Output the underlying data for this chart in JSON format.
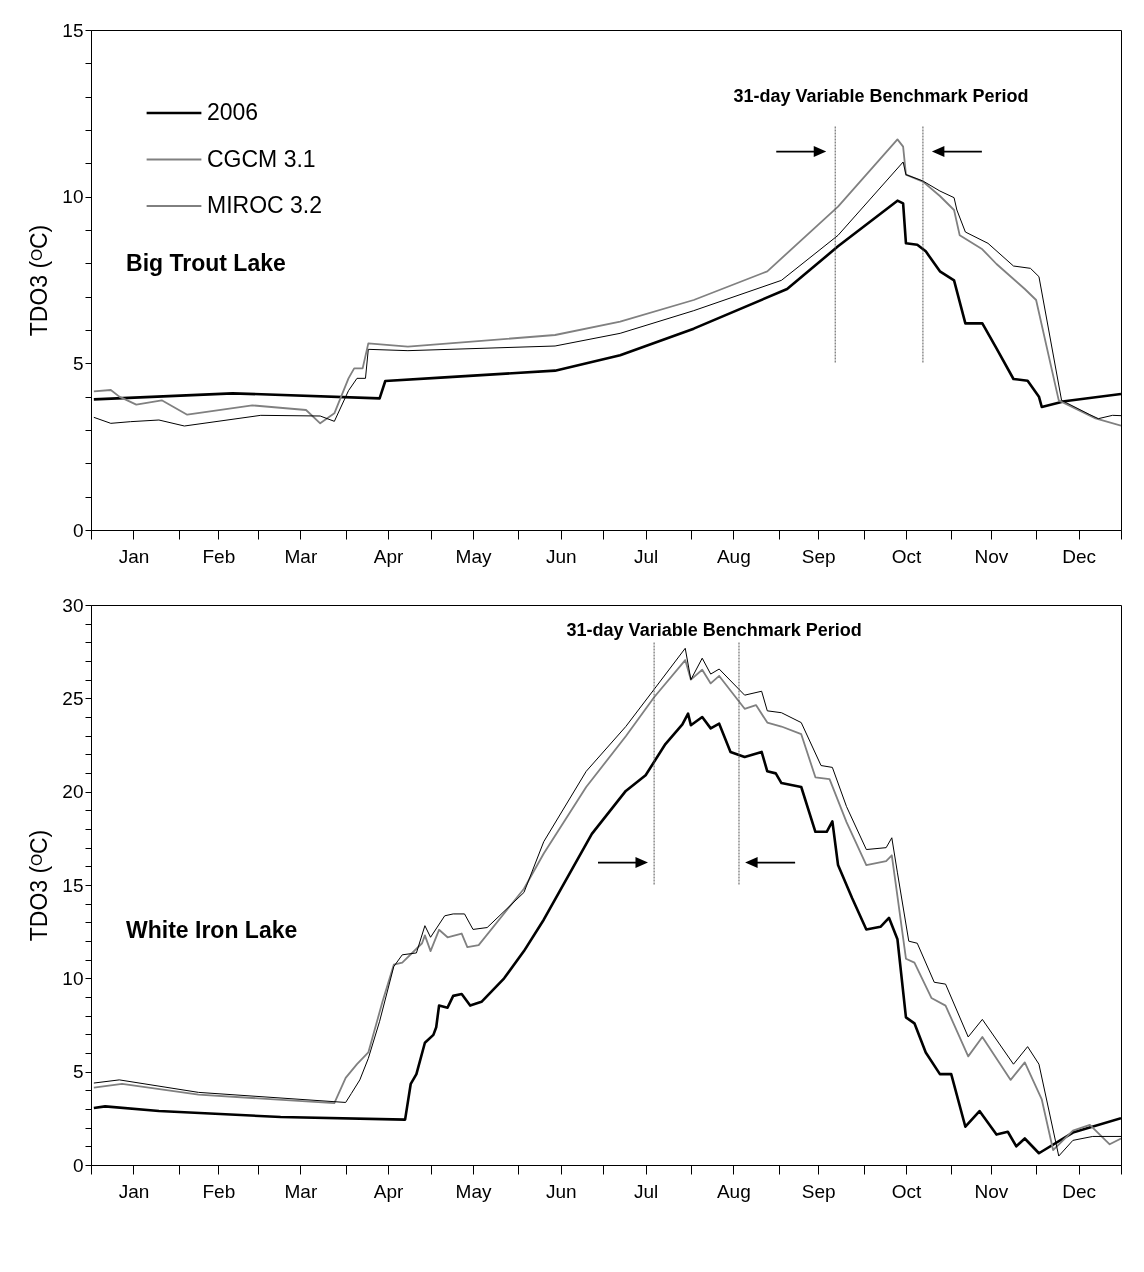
{
  "chart_data": [
    {
      "type": "line",
      "ylabel": "TDO3 (ᴼC)",
      "xlim": [
        "--01-01",
        "--12-31"
      ],
      "ylim": [
        0,
        15
      ],
      "xticks": [
        {
          "value": "--01-01",
          "label": null
        },
        {
          "value": "--01-16",
          "label": "Jan"
        },
        {
          "value": "--02-01",
          "label": null
        },
        {
          "value": "--02-15",
          "label": "Feb"
        },
        {
          "value": "--03-01",
          "label": null
        },
        {
          "value": "--03-16",
          "label": "Mar"
        },
        {
          "value": "--04-01",
          "label": null
        },
        {
          "value": "--04-16",
          "label": "Apr"
        },
        {
          "value": "--05-01",
          "label": null
        },
        {
          "value": "--05-16",
          "label": "May"
        },
        {
          "value": "--06-01",
          "label": null
        },
        {
          "value": "--06-16",
          "label": "Jun"
        },
        {
          "value": "--07-01",
          "label": null
        },
        {
          "value": "--07-16",
          "label": "Jul"
        },
        {
          "value": "--08-01",
          "label": null
        },
        {
          "value": "--08-16",
          "label": "Aug"
        },
        {
          "value": "--09-01",
          "label": null
        },
        {
          "value": "--09-15",
          "label": "Sep"
        },
        {
          "value": "--10-01",
          "label": null
        },
        {
          "value": "--10-16",
          "label": "Oct"
        },
        {
          "value": "--11-01",
          "label": null
        },
        {
          "value": "--11-15",
          "label": "Nov"
        },
        {
          "value": "--12-01",
          "label": null
        },
        {
          "value": "--12-16",
          "label": "Dec"
        },
        {
          "value": "--12-31",
          "label": null
        }
      ],
      "yticks": [
        0,
        {
          "value": 1,
          "label": null
        },
        {
          "value": 2,
          "label": null
        },
        {
          "value": 3,
          "label": null
        },
        {
          "value": 4,
          "label": null
        },
        5,
        {
          "value": 6,
          "label": null
        },
        {
          "value": 7,
          "label": null
        },
        {
          "value": 8,
          "label": null
        },
        {
          "value": 9,
          "label": null
        },
        10,
        {
          "value": 11,
          "label": null
        },
        {
          "value": 12,
          "label": null
        },
        {
          "value": 13,
          "label": null
        },
        {
          "value": 14,
          "label": null
        },
        15
      ],
      "legend": "top left",
      "annotations": [
        "Big Trout Lake",
        "31-day  Variable Benchmark Period"
      ],
      "ref_lines": [
        {
          "axis": "x",
          "value": "--09-21"
        },
        {
          "axis": "x",
          "value": "--10-22"
        }
      ],
      "series": [
        {
          "name": "2006",
          "color": "#000000",
          "x": [
            "--01-02",
            "--02-20",
            "--04-13",
            "--04-15",
            "--05-06",
            "--06-14",
            "--07-07",
            "--08-02",
            "--09-04",
            "--09-22",
            "--10-13",
            "--10-15",
            "--10-16",
            "--10-20",
            "--10-23",
            "--10-28",
            "--11-02",
            "--11-06",
            "--11-12",
            "--11-17",
            "--11-23",
            "--11-28",
            "--12-02",
            "--12-03",
            "--12-11",
            "--12-31"
          ],
          "values": [
            3.92,
            4.1,
            3.95,
            4.47,
            4.58,
            4.78,
            5.24,
            6.04,
            7.23,
            8.51,
            9.88,
            9.8,
            8.6,
            8.56,
            8.36,
            7.76,
            7.49,
            6.2,
            6.2,
            5.45,
            4.53,
            4.48,
            4.0,
            3.69,
            3.86,
            4.08
          ]
        },
        {
          "name": "CGCM 3.1",
          "color": "#808080",
          "x": [
            "--01-02",
            "--01-08",
            "--01-11",
            "--01-17",
            "--01-26",
            "--02-04",
            "--02-27",
            "--03-18",
            "--03-23",
            "--03-28",
            "--04-02",
            "--04-04",
            "--04-07",
            "--04-09",
            "--04-23",
            "--06-14",
            "--07-07",
            "--08-02",
            "--08-28",
            "--09-22",
            "--10-13",
            "--10-15",
            "--10-16",
            "--10-22",
            "--10-28",
            "--11-02",
            "--11-04",
            "--11-12",
            "--11-17",
            "--11-27",
            "--12-01",
            "--12-09",
            "--12-22",
            "--12-31"
          ],
          "values": [
            4.16,
            4.2,
            4.0,
            3.76,
            3.89,
            3.46,
            3.74,
            3.6,
            3.2,
            3.5,
            4.55,
            4.85,
            4.85,
            5.6,
            5.5,
            5.85,
            6.25,
            6.9,
            7.76,
            9.7,
            11.72,
            11.5,
            10.66,
            10.45,
            10.02,
            9.6,
            8.84,
            8.42,
            7.98,
            7.23,
            6.9,
            3.89,
            3.35,
            3.13
          ]
        },
        {
          "name": "MIROC 3.2",
          "color": "#000000",
          "x": [
            "--01-02",
            "--01-08",
            "--01-15",
            "--01-25",
            "--02-03",
            "--03-02",
            "--03-23",
            "--03-28",
            "--04-02",
            "--04-05",
            "--04-08",
            "--04-09",
            "--04-23",
            "--06-14",
            "--07-07",
            "--08-02",
            "--09-02",
            "--09-22",
            "--10-15",
            "--10-16",
            "--10-22",
            "--10-28",
            "--11-02",
            "--11-03",
            "--11-06",
            "--11-14",
            "--11-23",
            "--11-29",
            "--12-02",
            "--12-10",
            "--12-20",
            "--12-23",
            "--12-28",
            "--12-31"
          ],
          "values": [
            3.38,
            3.2,
            3.25,
            3.3,
            3.12,
            3.44,
            3.42,
            3.26,
            4.18,
            4.55,
            4.55,
            5.42,
            5.38,
            5.52,
            5.9,
            6.58,
            7.49,
            8.84,
            11.04,
            10.66,
            10.47,
            10.17,
            9.97,
            9.6,
            8.94,
            8.6,
            7.92,
            7.85,
            7.6,
            3.89,
            3.46,
            3.34,
            3.44,
            3.43
          ]
        }
      ]
    },
    {
      "type": "line",
      "ylabel": "TDO3 (ᴼC)",
      "xlim": [
        "--01-01",
        "--12-31"
      ],
      "ylim": [
        0,
        30
      ],
      "xticks": [
        {
          "value": "--01-01",
          "label": null
        },
        {
          "value": "--01-16",
          "label": "Jan"
        },
        {
          "value": "--02-01",
          "label": null
        },
        {
          "value": "--02-15",
          "label": "Feb"
        },
        {
          "value": "--03-01",
          "label": null
        },
        {
          "value": "--03-16",
          "label": "Mar"
        },
        {
          "value": "--04-01",
          "label": null
        },
        {
          "value": "--04-16",
          "label": "Apr"
        },
        {
          "value": "--05-01",
          "label": null
        },
        {
          "value": "--05-16",
          "label": "May"
        },
        {
          "value": "--06-01",
          "label": null
        },
        {
          "value": "--06-16",
          "label": "Jun"
        },
        {
          "value": "--07-01",
          "label": null
        },
        {
          "value": "--07-16",
          "label": "Jul"
        },
        {
          "value": "--08-01",
          "label": null
        },
        {
          "value": "--08-16",
          "label": "Aug"
        },
        {
          "value": "--09-01",
          "label": null
        },
        {
          "value": "--09-15",
          "label": "Sep"
        },
        {
          "value": "--10-01",
          "label": null
        },
        {
          "value": "--10-16",
          "label": "Oct"
        },
        {
          "value": "--11-01",
          "label": null
        },
        {
          "value": "--11-15",
          "label": "Nov"
        },
        {
          "value": "--12-01",
          "label": null
        },
        {
          "value": "--12-16",
          "label": "Dec"
        },
        {
          "value": "--12-31",
          "label": null
        }
      ],
      "yticks": [
        0,
        {
          "value": 1,
          "label": null
        },
        {
          "value": 2,
          "label": null
        },
        {
          "value": 3,
          "label": null
        },
        {
          "value": 4,
          "label": null
        },
        5,
        {
          "value": 6,
          "label": null
        },
        {
          "value": 7,
          "label": null
        },
        {
          "value": 8,
          "label": null
        },
        {
          "value": 9,
          "label": null
        },
        10,
        {
          "value": 11,
          "label": null
        },
        {
          "value": 12,
          "label": null
        },
        {
          "value": 13,
          "label": null
        },
        {
          "value": 14,
          "label": null
        },
        15,
        {
          "value": 16,
          "label": null
        },
        {
          "value": 17,
          "label": null
        },
        {
          "value": 18,
          "label": null
        },
        {
          "value": 19,
          "label": null
        },
        20,
        {
          "value": 21,
          "label": null
        },
        {
          "value": 22,
          "label": null
        },
        {
          "value": 23,
          "label": null
        },
        {
          "value": 24,
          "label": null
        },
        25,
        {
          "value": 26,
          "label": null
        },
        {
          "value": 27,
          "label": null
        },
        {
          "value": 28,
          "label": null
        },
        {
          "value": 29,
          "label": null
        },
        30
      ],
      "annotations": [
        "White Iron Lake",
        "31-day Variable Benchmark Period"
      ],
      "ref_lines": [
        {
          "axis": "x",
          "value": "--07-19"
        },
        {
          "axis": "x",
          "value": "--08-18"
        }
      ],
      "series": [
        {
          "color": "#000000",
          "x": [
            "--01-02",
            "--01-06",
            "--01-25",
            "--03-09",
            "--04-22",
            "--04-24",
            "--04-26",
            "--04-29",
            "--05-02",
            "--05-03",
            "--05-04",
            "--05-07",
            "--05-09",
            "--05-12",
            "--05-15",
            "--05-19",
            "--05-27",
            "--06-03",
            "--06-10",
            "--06-27",
            "--07-09",
            "--07-16",
            "--07-23",
            "--07-29",
            "--07-31",
            "--08-01",
            "--08-05",
            "--08-08",
            "--08-11",
            "--08-15",
            "--08-20",
            "--08-26",
            "--08-28",
            "--08-31",
            "--09-02",
            "--09-09",
            "--09-14",
            "--09-18",
            "--09-20",
            "--09-22",
            "--09-27",
            "--10-02",
            "--10-07",
            "--10-10",
            "--10-13",
            "--10-16",
            "--10-19",
            "--10-23",
            "--10-28",
            "--11-01",
            "--11-06",
            "--11-11",
            "--11-17",
            "--11-21",
            "--11-24",
            "--11-27",
            "--12-02",
            "--12-14",
            "--12-31"
          ],
          "values": [
            3.05,
            3.14,
            2.89,
            2.57,
            2.43,
            4.35,
            4.87,
            6.55,
            6.97,
            7.38,
            8.54,
            8.43,
            9.06,
            9.16,
            8.54,
            8.74,
            10.0,
            11.46,
            13.14,
            17.74,
            20.04,
            20.88,
            22.55,
            23.6,
            24.18,
            23.56,
            24.0,
            23.39,
            23.64,
            22.13,
            21.86,
            22.13,
            21.09,
            20.98,
            20.46,
            20.25,
            17.85,
            17.85,
            18.41,
            16.07,
            14.29,
            12.62,
            12.76,
            13.24,
            12.09,
            7.91,
            7.59,
            6.03,
            4.87,
            4.87,
            2.05,
            2.89,
            1.63,
            1.78,
            1.0,
            1.42,
            0.63,
            1.74,
            2.51
          ]
        },
        {
          "color": "#808080",
          "x": [
            "--01-02",
            "--01-12",
            "--02-08",
            "--03-28",
            "--04-01",
            "--04-05",
            "--04-09",
            "--04-14",
            "--04-18",
            "--04-21",
            "--04-28",
            "--04-29",
            "--05-01",
            "--05-04",
            "--05-07",
            "--05-12",
            "--05-14",
            "--05-18",
            "--06-03",
            "--06-10",
            "--06-25",
            "--07-09",
            "--07-19",
            "--07-30",
            "--08-01",
            "--08-05",
            "--08-08",
            "--08-11",
            "--08-20",
            "--08-24",
            "--08-28",
            "--09-02",
            "--09-09",
            "--09-14",
            "--09-19",
            "--09-25",
            "--10-02",
            "--10-09",
            "--10-11",
            "--10-13",
            "--10-16",
            "--10-19",
            "--10-25",
            "--10-30",
            "--11-07",
            "--11-12",
            "--11-22",
            "--11-27",
            "--12-03",
            "--12-07",
            "--12-14",
            "--12-20",
            "--12-27",
            "--12-31"
          ],
          "values": [
            4.14,
            4.35,
            3.77,
            3.31,
            4.67,
            5.4,
            6.03,
            8.74,
            10.73,
            10.84,
            11.88,
            12.3,
            11.46,
            12.6,
            12.2,
            12.4,
            11.67,
            11.78,
            14.8,
            16.69,
            20.25,
            22.97,
            25.06,
            27.05,
            26.0,
            26.53,
            25.8,
            26.2,
            24.44,
            24.64,
            23.7,
            23.49,
            23.08,
            20.77,
            20.67,
            18.37,
            16.07,
            16.28,
            16.59,
            14.39,
            11.05,
            10.84,
            8.95,
            8.54,
            5.82,
            6.86,
            4.56,
            5.5,
            3.51,
            0.8,
            1.84,
            2.15,
            1.11,
            1.42
          ]
        },
        {
          "color": "#000000",
          "x": [
            "--01-02",
            "--01-11",
            "--02-08",
            "--04-01",
            "--04-03",
            "--04-06",
            "--04-09",
            "--04-13",
            "--04-18",
            "--04-21",
            "--04-26",
            "--04-29",
            "--05-01",
            "--05-06",
            "--05-09",
            "--05-13",
            "--05-16",
            "--05-21",
            "--06-03",
            "--06-10",
            "--06-25",
            "--07-09",
            "--07-19",
            "--07-30",
            "--08-01",
            "--08-05",
            "--08-08",
            "--08-11",
            "--08-20",
            "--08-26",
            "--08-28",
            "--09-02",
            "--09-09",
            "--09-16",
            "--09-20",
            "--09-25",
            "--10-02",
            "--10-09",
            "--10-11",
            "--10-13",
            "--10-17",
            "--10-20",
            "--10-26",
            "--10-30",
            "--11-07",
            "--11-12",
            "--11-23",
            "--11-28",
            "--12-02",
            "--12-09",
            "--12-14",
            "--12-21",
            "--12-31"
          ],
          "values": [
            4.39,
            4.56,
            3.89,
            3.35,
            3.83,
            4.56,
            5.71,
            7.7,
            10.63,
            11.26,
            11.36,
            12.82,
            12.2,
            13.35,
            13.45,
            13.45,
            12.62,
            12.72,
            14.6,
            17.32,
            21.09,
            23.49,
            25.48,
            27.68,
            26.0,
            27.15,
            26.3,
            26.57,
            25.17,
            25.38,
            24.33,
            24.23,
            23.7,
            21.4,
            21.3,
            19.2,
            16.9,
            17.0,
            17.53,
            15.65,
            11.99,
            11.88,
            9.79,
            9.69,
            6.86,
            7.8,
            5.4,
            6.34,
            5.4,
            0.48,
            1.32,
            1.53,
            1.53
          ]
        }
      ]
    }
  ]
}
